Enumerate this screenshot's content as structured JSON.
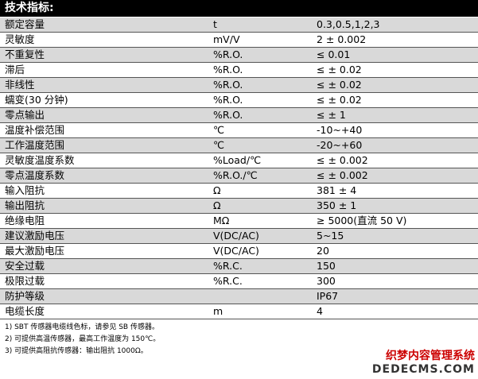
{
  "header": {
    "title": "技术指标:"
  },
  "table": {
    "rows": [
      [
        "额定容量",
        "t",
        "0.3,0.5,1,2,3"
      ],
      [
        "灵敏度",
        "mV/V",
        "2 ± 0.002"
      ],
      [
        "不重复性",
        "%R.O.",
        "≤ 0.01"
      ],
      [
        "滞后",
        "%R.O.",
        "≤ ± 0.02"
      ],
      [
        "非线性",
        "%R.O.",
        "≤ ± 0.02"
      ],
      [
        "蠕变(30 分钟)",
        "%R.O.",
        "≤ ± 0.02"
      ],
      [
        "零点输出",
        "%R.O.",
        "≤ ± 1"
      ],
      [
        "温度补偿范围",
        "℃",
        "-10~+40"
      ],
      [
        "工作温度范围",
        "℃",
        "-20~+60"
      ],
      [
        "灵敏度温度系数",
        "%Load/℃",
        "≤ ± 0.002"
      ],
      [
        "零点温度系数",
        "%R.O./℃",
        "≤ ± 0.002"
      ],
      [
        "输入阻抗",
        "Ω",
        "381 ± 4"
      ],
      [
        "输出阻抗",
        "Ω",
        "350 ± 1"
      ],
      [
        "绝缘电阻",
        "MΩ",
        "≥ 5000(直流 50 V)"
      ],
      [
        "建议激励电压",
        "V(DC/AC)",
        "5~15"
      ],
      [
        "最大激励电压",
        "V(DC/AC)",
        "20"
      ],
      [
        "安全过载",
        "%R.C.",
        "150"
      ],
      [
        "极限过载",
        "%R.C.",
        "300"
      ],
      [
        "防护等级",
        null,
        "IP67"
      ],
      [
        "电缆长度",
        "m",
        "4"
      ]
    ]
  },
  "notes": [
    "1)  SBT 传感器电缆线色标，请参见 SB 传感器。",
    "2)  可提供高温传感器，最高工作温度为 150℃。",
    "3)  可提供高阻抗传感器：输出阻抗 1000Ω。"
  ],
  "watermark": {
    "brand": "织梦内容管理系统",
    "site": "DEDECMS.COM"
  }
}
